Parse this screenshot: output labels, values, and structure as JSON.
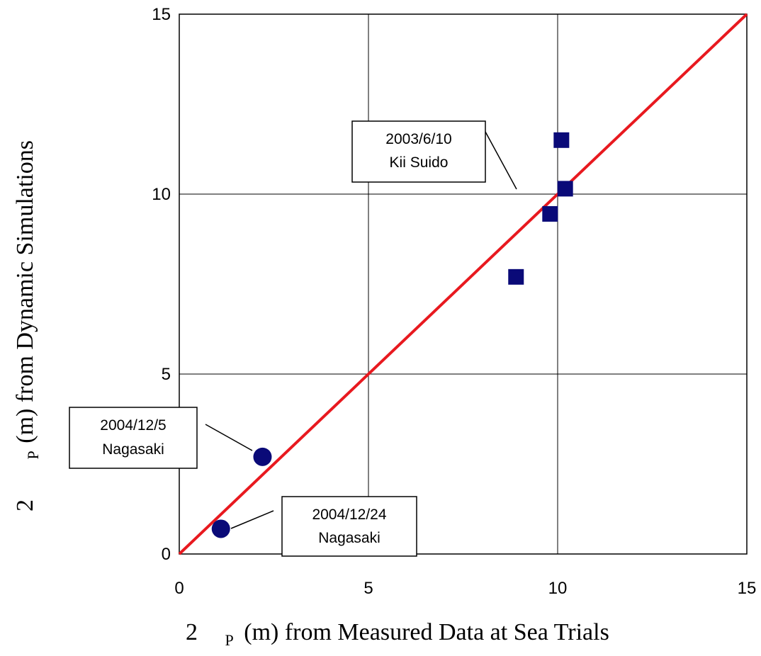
{
  "chart_data": {
    "type": "scatter",
    "xlabel": {
      "prefix": "2",
      "sub": "P",
      "text": "(m) from Measured Data at Sea Trials"
    },
    "ylabel": {
      "prefix": "2",
      "sub": "P",
      "text": "(m) from Dynamic Simulations"
    },
    "xlim": [
      0,
      15
    ],
    "ylim": [
      0,
      15
    ],
    "xticks": [
      0,
      5,
      10,
      15
    ],
    "yticks": [
      0,
      5,
      10,
      15
    ],
    "xtick_labels": [
      "0",
      "5",
      "10",
      "15"
    ],
    "ytick_labels": [
      "0",
      "5",
      "10",
      "15"
    ],
    "grid": true,
    "reference_line": {
      "x": [
        0,
        15
      ],
      "y": [
        0,
        15
      ],
      "color": "#e8191f"
    },
    "series": [
      {
        "marker": "square",
        "color": "#0a0a78",
        "points": [
          {
            "x": 8.9,
            "y": 7.7
          },
          {
            "x": 9.8,
            "y": 9.45
          },
          {
            "x": 10.1,
            "y": 11.5
          },
          {
            "x": 10.2,
            "y": 10.15
          }
        ]
      },
      {
        "marker": "circle",
        "color": "#0a0a78",
        "points": [
          {
            "x": 2.2,
            "y": 2.7
          },
          {
            "x": 1.1,
            "y": 0.7
          }
        ]
      }
    ],
    "annotations": [
      {
        "line1": "2003/6/10",
        "line2": "Kii Suido"
      },
      {
        "line1": "2004/12/5",
        "line2": "Nagasaki"
      },
      {
        "line1": "2004/12/24",
        "line2": "Nagasaki"
      }
    ]
  }
}
